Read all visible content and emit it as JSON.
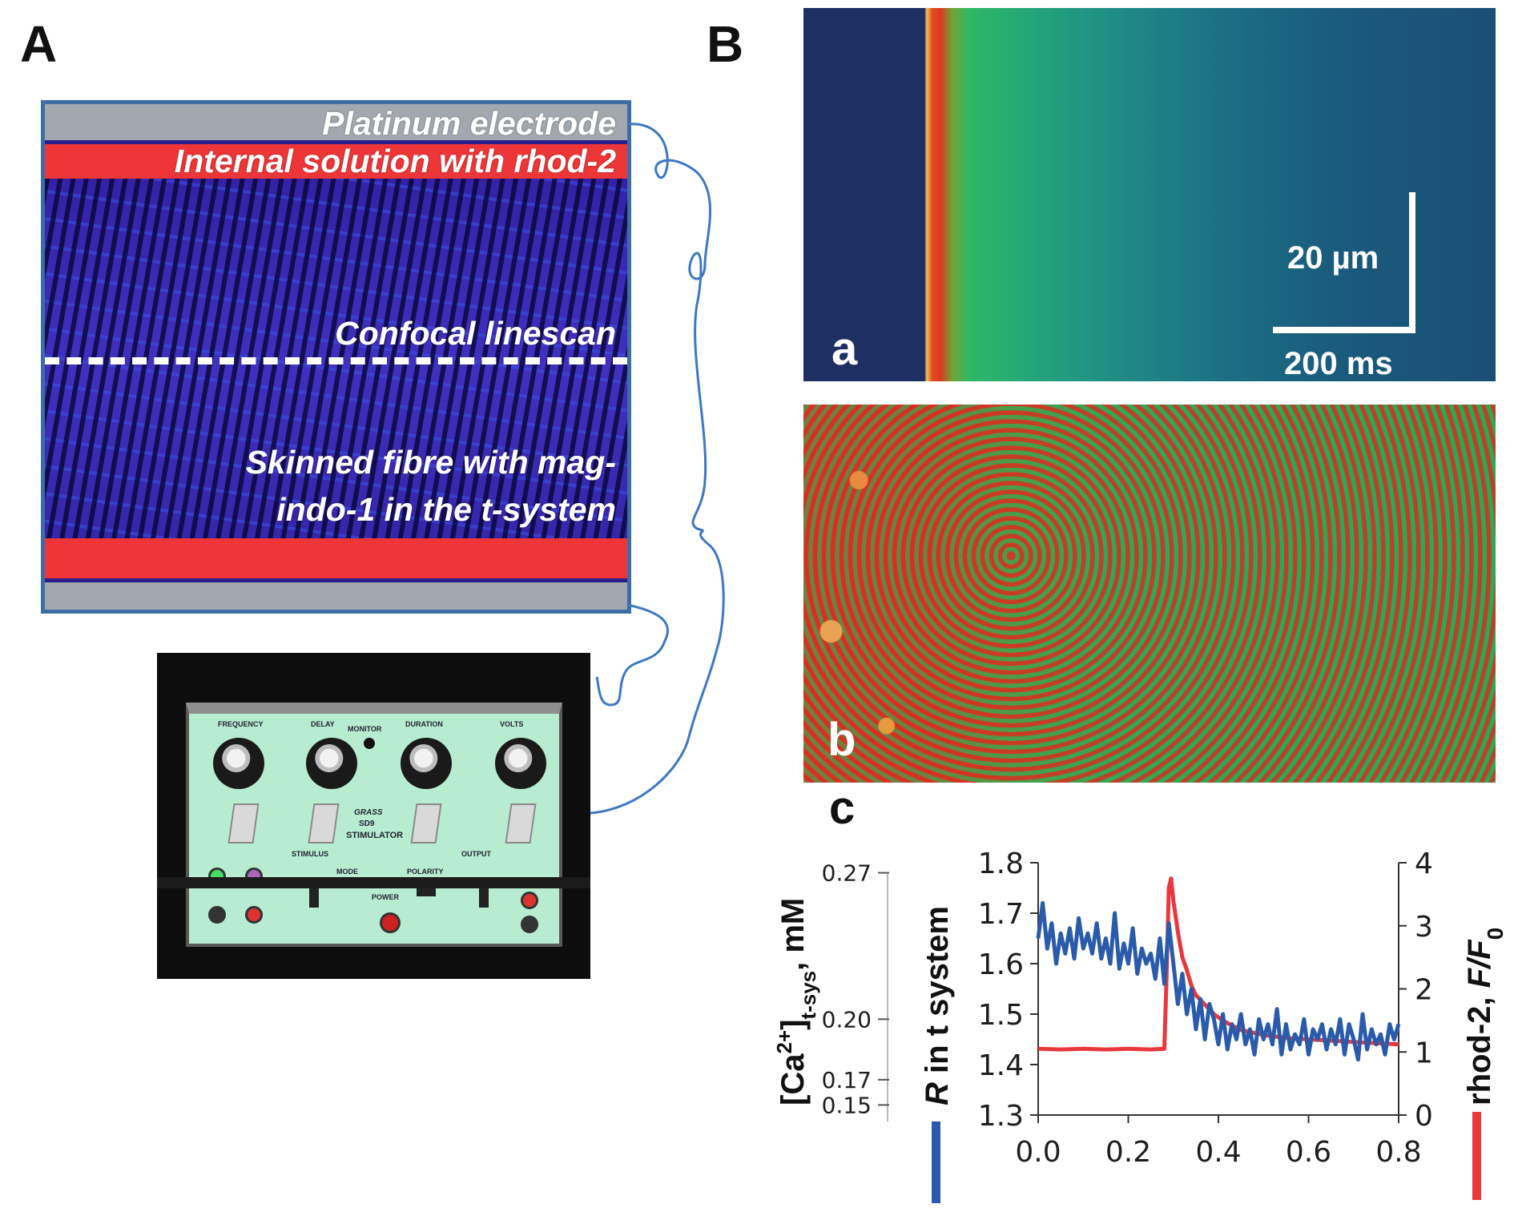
{
  "panel_labels": {
    "A": "A",
    "B": "B",
    "a": "a",
    "b": "b",
    "c": "c"
  },
  "schematic": {
    "electrode": "Platinum electrode",
    "internal_solution": "Internal solution with rhod-2",
    "linescan": "Confocal linescan",
    "fibre_line1": "Skinned fibre with mag-",
    "fibre_line2": "indo-1 in the t-system"
  },
  "stimulator": {
    "brand": "GRASS",
    "model": "SD9",
    "name": "STIMULATOR",
    "knobs": [
      "FREQUENCY",
      "DELAY",
      "DURATION",
      "VOLTS"
    ],
    "section_labels": [
      "STIMULUS",
      "OUTPUT",
      "MONITOR",
      "MODE",
      "POLARITY",
      "POWER"
    ]
  },
  "scale_bar": {
    "vertical": "20 µm",
    "horizontal": "200 ms"
  },
  "colors": {
    "blue_trace": "#2a5bab",
    "red_trace": "#e8383d",
    "electrode_wire": "#3c78c3"
  },
  "chart_data": {
    "type": "line",
    "xlabel": "",
    "x_ticks": [
      "0.0",
      "0.2",
      "0.4",
      "0.6",
      "0.8"
    ],
    "xlim": [
      0,
      0.8
    ],
    "left_outer_axis": {
      "label_parts": [
        "[Ca",
        "2+",
        "]",
        "t-sys",
        ", mM"
      ],
      "ticks": [
        "0.27",
        "0.20",
        "0.17",
        "0.15"
      ]
    },
    "left_axis": {
      "label_italic": "R",
      "label_rest": " in t system",
      "ticks": [
        "1.8",
        "1.7",
        "1.6",
        "1.5",
        "1.4",
        "1.3"
      ],
      "ylim": [
        1.3,
        1.8
      ]
    },
    "right_axis": {
      "label_rest": "rhod-2, ",
      "label_italic": "F/F",
      "label_sub": "0",
      "ticks": [
        "4",
        "3",
        "2",
        "1",
        "0"
      ],
      "ylim": [
        0,
        4
      ]
    },
    "series": [
      {
        "axis": "left",
        "x": [
          0.0,
          0.01,
          0.02,
          0.03,
          0.04,
          0.05,
          0.06,
          0.07,
          0.08,
          0.09,
          0.1,
          0.11,
          0.12,
          0.13,
          0.14,
          0.15,
          0.16,
          0.17,
          0.18,
          0.19,
          0.2,
          0.21,
          0.22,
          0.23,
          0.24,
          0.25,
          0.26,
          0.27,
          0.28,
          0.29,
          0.3,
          0.31,
          0.32,
          0.33,
          0.34,
          0.35,
          0.36,
          0.37,
          0.38,
          0.39,
          0.4,
          0.41,
          0.42,
          0.43,
          0.44,
          0.45,
          0.46,
          0.47,
          0.48,
          0.49,
          0.5,
          0.51,
          0.52,
          0.53,
          0.54,
          0.55,
          0.56,
          0.57,
          0.58,
          0.59,
          0.6,
          0.61,
          0.62,
          0.63,
          0.64,
          0.65,
          0.66,
          0.67,
          0.68,
          0.69,
          0.7,
          0.71,
          0.72,
          0.73,
          0.74,
          0.75,
          0.76,
          0.77,
          0.78,
          0.79,
          0.8
        ],
        "y": [
          1.65,
          1.72,
          1.63,
          1.68,
          1.6,
          1.66,
          1.62,
          1.67,
          1.61,
          1.69,
          1.63,
          1.66,
          1.62,
          1.68,
          1.61,
          1.65,
          1.6,
          1.7,
          1.59,
          1.64,
          1.6,
          1.67,
          1.58,
          1.63,
          1.6,
          1.62,
          1.57,
          1.65,
          1.56,
          1.68,
          1.6,
          1.52,
          1.58,
          1.5,
          1.55,
          1.47,
          1.53,
          1.45,
          1.52,
          1.49,
          1.44,
          1.5,
          1.43,
          1.48,
          1.45,
          1.5,
          1.44,
          1.47,
          1.42,
          1.49,
          1.45,
          1.48,
          1.44,
          1.51,
          1.42,
          1.48,
          1.43,
          1.46,
          1.44,
          1.49,
          1.42,
          1.47,
          1.45,
          1.48,
          1.43,
          1.47,
          1.44,
          1.49,
          1.42,
          1.48,
          1.45,
          1.41,
          1.5,
          1.43,
          1.47,
          1.44,
          1.46,
          1.42,
          1.48,
          1.45,
          1.48
        ]
      },
      {
        "axis": "right",
        "x": [
          0.0,
          0.05,
          0.1,
          0.15,
          0.2,
          0.25,
          0.28,
          0.285,
          0.29,
          0.295,
          0.3,
          0.31,
          0.32,
          0.33,
          0.34,
          0.35,
          0.37,
          0.39,
          0.41,
          0.43,
          0.45,
          0.48,
          0.5,
          0.55,
          0.6,
          0.65,
          0.7,
          0.75,
          0.8
        ],
        "y": [
          1.05,
          1.04,
          1.05,
          1.04,
          1.05,
          1.04,
          1.05,
          2.2,
          3.6,
          3.75,
          3.4,
          2.9,
          2.5,
          2.3,
          2.05,
          1.9,
          1.75,
          1.6,
          1.5,
          1.42,
          1.35,
          1.3,
          1.27,
          1.22,
          1.2,
          1.18,
          1.16,
          1.14,
          1.12
        ]
      }
    ]
  }
}
